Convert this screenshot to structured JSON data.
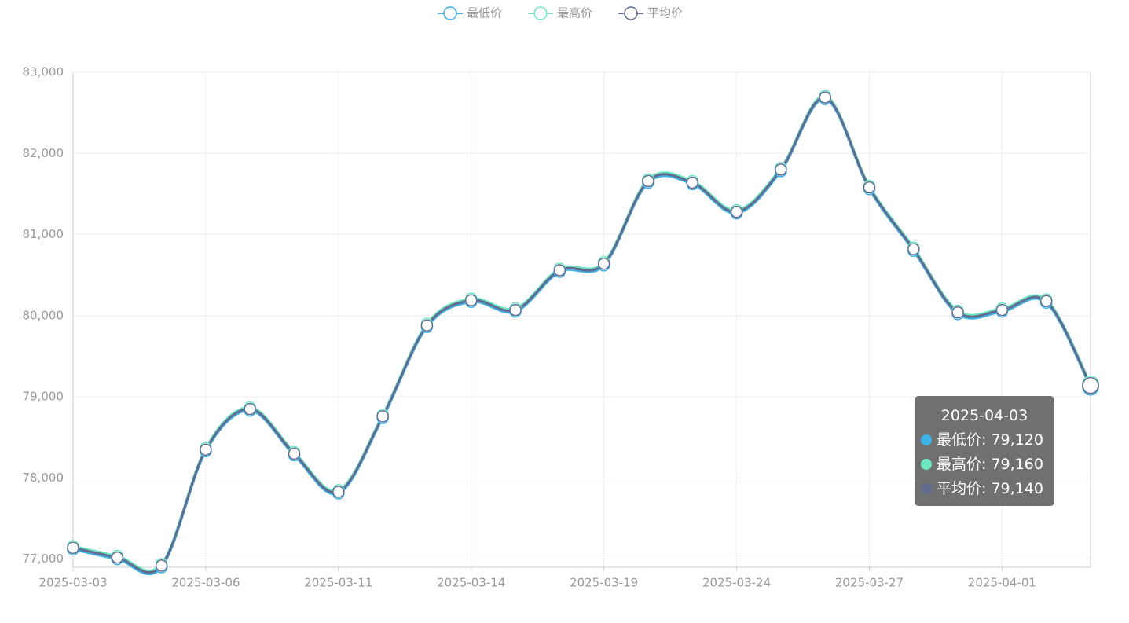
{
  "chart_data": {
    "type": "line",
    "categories": [
      "2025-03-03",
      null,
      null,
      "2025-03-06",
      null,
      null,
      "2025-03-11",
      null,
      null,
      "2025-03-14",
      null,
      null,
      "2025-03-19",
      null,
      null,
      "2025-03-24",
      null,
      null,
      "2025-03-27",
      null,
      null,
      "2025-04-01",
      null,
      null
    ],
    "series": [
      {
        "name": "最低价",
        "color": "#3fb1e3",
        "values": [
          77120,
          77000,
          76900,
          78330,
          78830,
          78280,
          77810,
          78740,
          79860,
          80170,
          80050,
          80540,
          80620,
          81640,
          81620,
          81260,
          81780,
          82670,
          81560,
          80800,
          80020,
          80050,
          80160,
          79120
        ]
      },
      {
        "name": "最高价",
        "color": "#6be6c1",
        "values": [
          77160,
          77040,
          76940,
          78370,
          78870,
          78320,
          77850,
          78780,
          79900,
          80210,
          80090,
          80580,
          80660,
          81680,
          81660,
          81300,
          81820,
          82710,
          81600,
          80840,
          80060,
          80090,
          80200,
          79160
        ]
      },
      {
        "name": "平均价",
        "color": "#626c91",
        "values": [
          77140,
          77020,
          76920,
          78350,
          78850,
          78300,
          77830,
          78760,
          79880,
          80190,
          80070,
          80560,
          80640,
          81660,
          81640,
          81280,
          81800,
          82690,
          81580,
          80820,
          80040,
          80070,
          80180,
          79140
        ]
      }
    ],
    "ylim": [
      76900,
      83000
    ],
    "yticks": [
      {
        "value": 77000,
        "label": "77,000"
      },
      {
        "value": 78000,
        "label": "78,000"
      },
      {
        "value": 79000,
        "label": "79,000"
      },
      {
        "value": 80000,
        "label": "80,000"
      },
      {
        "value": 81000,
        "label": "81,000"
      },
      {
        "value": 82000,
        "label": "82,000"
      },
      {
        "value": 83000,
        "label": "83,000"
      }
    ],
    "grid": true,
    "legend": "top",
    "tooltip": {
      "title": "2025-04-03",
      "values": [
        {
          "value": 79120,
          "label": "79,120"
        },
        {
          "value": 79160,
          "label": "79,160"
        },
        {
          "value": 79140,
          "label": "79,140"
        }
      ]
    }
  }
}
